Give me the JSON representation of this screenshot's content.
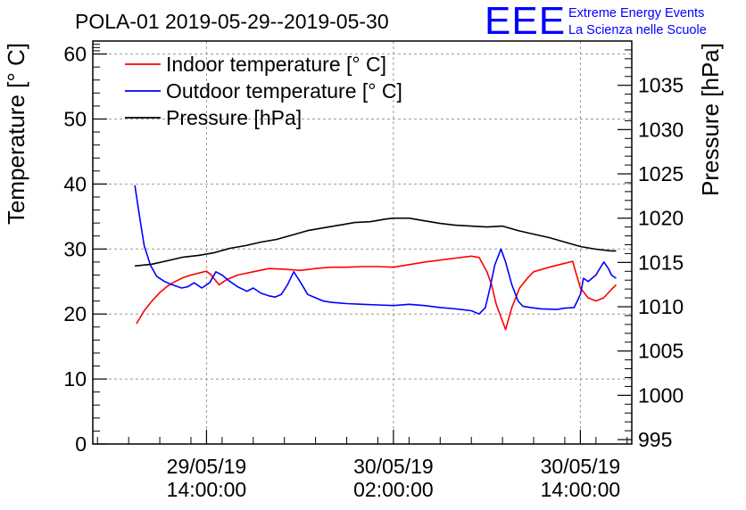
{
  "chart_data": {
    "type": "line",
    "title": "POLA-01 2019-05-29--2019-05-30",
    "ylabel": "Temperature [° C]",
    "y2label": "Pressure [hPa]",
    "ylim": [
      0,
      62
    ],
    "y2lim": [
      994.5,
      1040
    ],
    "yticks": [
      "0",
      "10",
      "20",
      "30",
      "40",
      "50",
      "60"
    ],
    "y2ticks": [
      "995",
      "1000",
      "1005",
      "1010",
      "1015",
      "1020",
      "1025",
      "1030",
      "1035"
    ],
    "xticks": [
      {
        "date": "29/05/19",
        "time": "14:00:00",
        "hours": 0
      },
      {
        "date": "30/05/19",
        "time": "02:00:00",
        "hours": 12
      },
      {
        "date": "30/05/19",
        "time": "14:00:00",
        "hours": 24
      }
    ],
    "xlim": [
      -7.3,
      27.3
    ],
    "grid": true,
    "legend_position": "top-left",
    "series": [
      {
        "name": "Indoor temperature [° C]",
        "color": "#ff0000",
        "axis": "left",
        "x": [
          -4.5,
          -4.0,
          -3.5,
          -3.0,
          -2.5,
          -2.0,
          -1.5,
          -1.0,
          -0.5,
          0.0,
          0.3,
          0.8,
          1.3,
          2.0,
          3.0,
          4.0,
          5.0,
          6.0,
          7.0,
          8.0,
          9.0,
          10.0,
          11.0,
          12.0,
          13.0,
          14.0,
          15.0,
          16.0,
          17.0,
          17.5,
          18.0,
          18.3,
          18.6,
          19.2,
          19.6,
          20.1,
          20.6,
          21.0,
          22.0,
          23.0,
          23.5,
          24.0,
          24.5,
          25.0,
          25.5,
          26.0,
          26.3
        ],
        "values": [
          18.5,
          20.5,
          22.0,
          23.3,
          24.3,
          25.0,
          25.6,
          26.0,
          26.3,
          26.6,
          26.0,
          24.5,
          25.3,
          26.0,
          26.5,
          27.0,
          26.9,
          26.7,
          27.0,
          27.2,
          27.2,
          27.3,
          27.3,
          27.2,
          27.6,
          28.0,
          28.3,
          28.6,
          28.9,
          28.7,
          26.5,
          24.5,
          21.5,
          17.6,
          21.0,
          24.0,
          25.5,
          26.5,
          27.2,
          27.8,
          28.1,
          24.0,
          22.5,
          22.0,
          22.5,
          23.8,
          24.5
        ]
      },
      {
        "name": "Outdoor temperature [° C]",
        "color": "#0000ff",
        "axis": "left",
        "x": [
          -4.6,
          -4.3,
          -4.0,
          -3.6,
          -3.2,
          -2.7,
          -2.2,
          -1.6,
          -1.2,
          -0.8,
          -0.3,
          0.2,
          0.6,
          1.0,
          1.5,
          2.0,
          2.6,
          3.0,
          3.5,
          4.0,
          4.4,
          4.8,
          5.2,
          5.6,
          6.0,
          6.5,
          7.0,
          7.5,
          8.0,
          9.0,
          10.0,
          11.0,
          12.0,
          13.0,
          14.0,
          15.0,
          16.0,
          17.0,
          17.5,
          17.9,
          18.2,
          18.5,
          18.9,
          19.2,
          19.6,
          20.0,
          20.3,
          20.8,
          21.5,
          22.5,
          23.0,
          23.6,
          24.0,
          24.2,
          24.5,
          25.0,
          25.5,
          25.8,
          26.0,
          26.3
        ],
        "values": [
          39.8,
          35.0,
          30.5,
          27.5,
          25.8,
          25.0,
          24.5,
          24.0,
          24.2,
          24.8,
          24.0,
          24.8,
          26.5,
          26.0,
          25.0,
          24.2,
          23.5,
          24.0,
          23.2,
          22.8,
          22.6,
          23.0,
          24.5,
          26.5,
          25.0,
          23.0,
          22.5,
          22.0,
          21.8,
          21.6,
          21.5,
          21.4,
          21.3,
          21.5,
          21.3,
          21.0,
          20.8,
          20.5,
          20.0,
          21.0,
          24.0,
          27.5,
          30.0,
          28.0,
          24.5,
          22.0,
          21.2,
          21.0,
          20.8,
          20.7,
          20.9,
          21.0,
          23.0,
          25.5,
          25.0,
          26.0,
          28.0,
          27.0,
          26.0,
          25.5
        ]
      },
      {
        "name": "Pressure [hPa]",
        "color": "#000000",
        "axis": "right",
        "x": [
          -4.6,
          -3.5,
          -2.5,
          -1.5,
          -0.5,
          0.5,
          1.5,
          2.5,
          3.5,
          4.5,
          5.5,
          6.5,
          7.5,
          8.5,
          9.5,
          10.5,
          11.5,
          12.0,
          13.0,
          14.0,
          15.0,
          16.0,
          17.0,
          18.0,
          19.0,
          20.0,
          21.0,
          22.0,
          23.0,
          24.0,
          25.0,
          26.0,
          26.3
        ],
        "values": [
          1014.6,
          1014.8,
          1015.2,
          1015.6,
          1015.8,
          1016.1,
          1016.6,
          1016.9,
          1017.3,
          1017.6,
          1018.1,
          1018.6,
          1018.9,
          1019.2,
          1019.5,
          1019.6,
          1019.9,
          1020.0,
          1020.0,
          1019.7,
          1019.4,
          1019.2,
          1019.1,
          1019.0,
          1019.1,
          1018.6,
          1018.2,
          1017.8,
          1017.3,
          1016.8,
          1016.5,
          1016.3,
          1016.3
        ]
      }
    ]
  },
  "logo": {
    "letters": "EEE",
    "line1": "Extreme Energy Events",
    "line2": "La Scienza nelle Scuole",
    "color": "#0000ff"
  }
}
